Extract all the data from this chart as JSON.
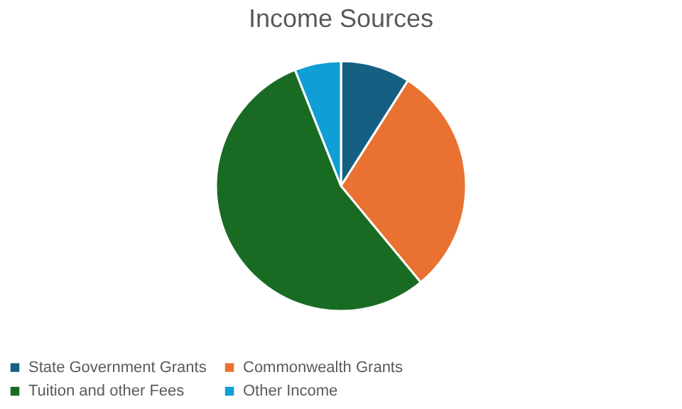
{
  "chart_data": {
    "type": "pie",
    "title": "Income Sources",
    "categories": [
      "State Government Grants",
      "Commonwealth Grants",
      "Tuition and other Fees",
      "Other Income"
    ],
    "values": [
      9,
      30,
      55,
      6
    ],
    "colors": [
      "#156082",
      "#e97132",
      "#196b24",
      "#0f9ed5"
    ],
    "legend": "bottom"
  }
}
